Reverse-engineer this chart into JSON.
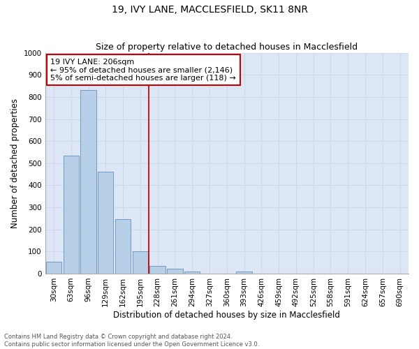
{
  "title": "19, IVY LANE, MACCLESFIELD, SK11 8NR",
  "subtitle": "Size of property relative to detached houses in Macclesfield",
  "xlabel": "Distribution of detached houses by size in Macclesfield",
  "ylabel": "Number of detached properties",
  "footnote1": "Contains HM Land Registry data © Crown copyright and database right 2024.",
  "footnote2": "Contains public sector information licensed under the Open Government Licence v3.0.",
  "bar_labels": [
    "30sqm",
    "63sqm",
    "96sqm",
    "129sqm",
    "162sqm",
    "195sqm",
    "228sqm",
    "261sqm",
    "294sqm",
    "327sqm",
    "360sqm",
    "393sqm",
    "426sqm",
    "459sqm",
    "492sqm",
    "525sqm",
    "558sqm",
    "591sqm",
    "624sqm",
    "657sqm",
    "690sqm"
  ],
  "bar_values": [
    55,
    535,
    830,
    460,
    245,
    100,
    35,
    23,
    10,
    0,
    0,
    10,
    0,
    0,
    0,
    0,
    0,
    0,
    0,
    0,
    0
  ],
  "bar_color": "#b8cfe8",
  "bar_edge_color": "#6090c0",
  "annotation_text_line1": "19 IVY LANE: 206sqm",
  "annotation_text_line2": "← 95% of detached houses are smaller (2,146)",
  "annotation_text_line3": "5% of semi-detached houses are larger (118) →",
  "annotation_box_color": "#ffffff",
  "annotation_box_edge": "#cc0000",
  "vline_color": "#cc0000",
  "vline_x": 5.5,
  "ylim": [
    0,
    1000
  ],
  "yticks": [
    0,
    100,
    200,
    300,
    400,
    500,
    600,
    700,
    800,
    900,
    1000
  ],
  "grid_color": "#cdd8ec",
  "background_color": "#dde6f4",
  "title_fontsize": 10,
  "subtitle_fontsize": 9,
  "xlabel_fontsize": 8.5,
  "ylabel_fontsize": 8.5,
  "tick_fontsize": 7.5,
  "annotation_fontsize": 8,
  "footnote_fontsize": 6
}
